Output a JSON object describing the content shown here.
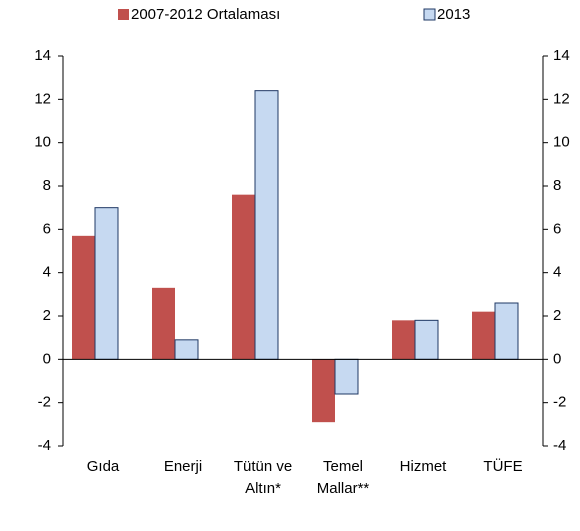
{
  "chart_data": {
    "type": "bar",
    "categories": [
      "Gıda",
      "Enerji",
      "Tütün ve\nAltın*",
      "Temel\nMallar**",
      "Hizmet",
      "TÜFE"
    ],
    "series": [
      {
        "name": "2007-2012 Ortalaması",
        "color": "#c0504d",
        "values": [
          5.7,
          3.3,
          7.6,
          -2.9,
          1.8,
          2.2
        ]
      },
      {
        "name": "2013",
        "color": "#c6d9f1",
        "values": [
          7.0,
          0.9,
          12.4,
          -1.6,
          1.8,
          2.6
        ]
      }
    ],
    "ylim": [
      -4,
      14
    ],
    "yticks": [
      -4,
      -2,
      0,
      2,
      4,
      6,
      8,
      10,
      12,
      14
    ]
  }
}
